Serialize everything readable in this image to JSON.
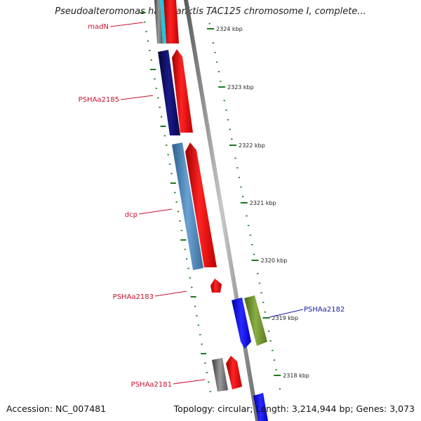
{
  "title": "Pseudoalteromonas haloplanktis TAC125 chromosome I, complete...",
  "accession": "Accession: NC_007481",
  "topology": "Topology: circular; Length: 3,214,944 bp; Genes: 3,073",
  "ruler_ticks": [
    "2324 kbp",
    "2323 kbp",
    "2322 kbp",
    "2321 kbp",
    "2320 kbp",
    "2319 kbp",
    "2318 kbp"
  ],
  "gene_labels": [
    {
      "text": "madN",
      "color": "#c8102e"
    },
    {
      "text": "PSHAa2185",
      "color": "#c8102e"
    },
    {
      "text": "dcp",
      "color": "#c8102e"
    },
    {
      "text": "PSHAa2183",
      "color": "#c8102e"
    },
    {
      "text": "PSHAa2182",
      "color": "#1a1aa8"
    },
    {
      "text": "PSHAa2181",
      "color": "#c8102e"
    }
  ],
  "colors": {
    "backbone": "#808080",
    "red": "#ee1111",
    "navy": "#0a0a70",
    "steelblue": "#4a84b8",
    "blue": "#1010ee",
    "olive": "#6a8c2a",
    "gray": "#6e6e6e",
    "cyan": "#1ec8e0",
    "tick_green": "#1a7a1a"
  }
}
